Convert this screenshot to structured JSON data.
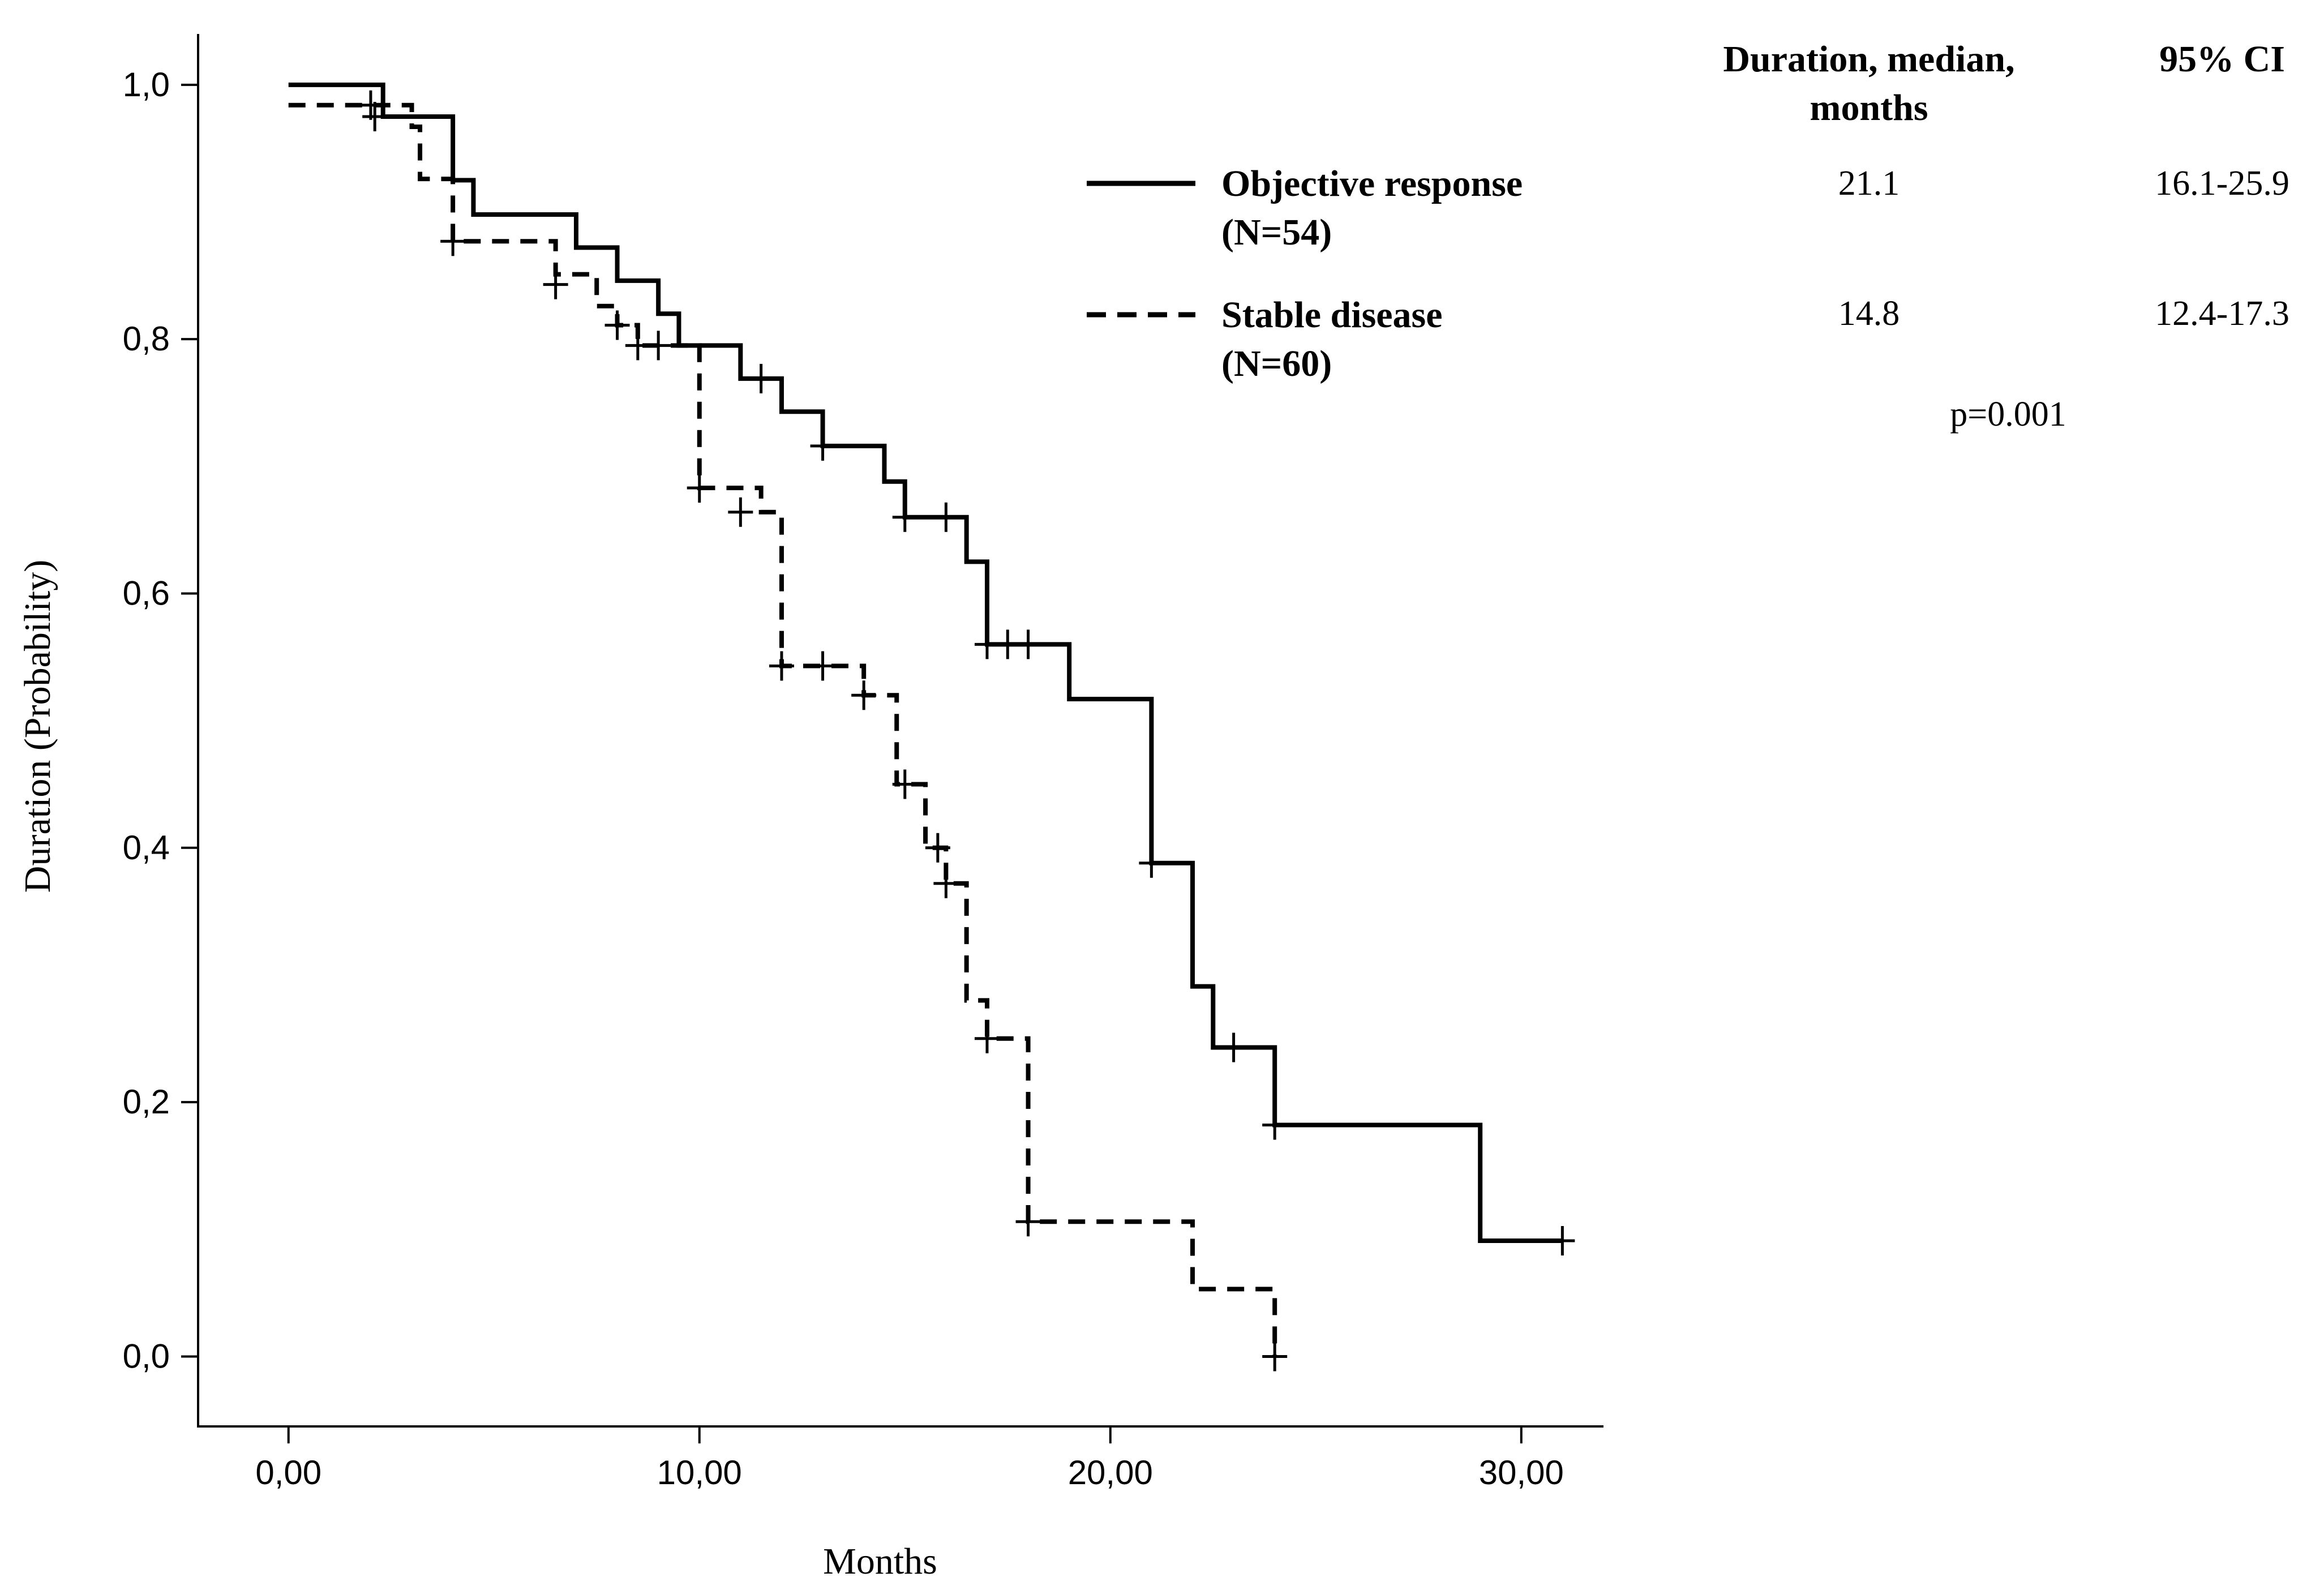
{
  "chart_data": {
    "type": "line",
    "subtype": "kaplan-meier",
    "xlabel": "Months",
    "ylabel": "Duration (Probability)",
    "xlim": [
      -2.2,
      32.0
    ],
    "ylim": [
      -0.055,
      1.04
    ],
    "xticks": [
      0,
      10,
      20,
      30
    ],
    "xtick_labels": [
      "0,00",
      "10,00",
      "20,00",
      "30,00"
    ],
    "yticks": [
      0,
      0.2,
      0.4,
      0.6,
      0.8,
      1.0
    ],
    "ytick_labels": [
      "0,0",
      "0,2",
      "0,4",
      "0,6",
      "0,8",
      "1,0"
    ],
    "series": [
      {
        "name": "Objective response",
        "n_label": "(N=54)",
        "style": "solid",
        "steps": [
          [
            0,
            1.0
          ],
          [
            2.3,
            0.975
          ],
          [
            4.0,
            0.925
          ],
          [
            4.5,
            0.898
          ],
          [
            7.0,
            0.872
          ],
          [
            8.0,
            0.846
          ],
          [
            9.0,
            0.82
          ],
          [
            9.5,
            0.795
          ],
          [
            11.0,
            0.769
          ],
          [
            12.0,
            0.743
          ],
          [
            13.0,
            0.716
          ],
          [
            14.5,
            0.688
          ],
          [
            15.0,
            0.66
          ],
          [
            16.5,
            0.625
          ],
          [
            17.0,
            0.56
          ],
          [
            19.0,
            0.517
          ],
          [
            21.0,
            0.388
          ],
          [
            22.0,
            0.291
          ],
          [
            22.5,
            0.243
          ],
          [
            24.0,
            0.182
          ],
          [
            29.0,
            0.091
          ]
        ],
        "end": 31.0,
        "censored": [
          [
            2.1,
            0.975
          ],
          [
            11.5,
            0.769
          ],
          [
            13.0,
            0.716
          ],
          [
            15.0,
            0.66
          ],
          [
            16.0,
            0.66
          ],
          [
            17.0,
            0.56
          ],
          [
            17.5,
            0.56
          ],
          [
            18.0,
            0.56
          ],
          [
            21.0,
            0.388
          ],
          [
            23.0,
            0.243
          ],
          [
            24.0,
            0.182
          ],
          [
            31.0,
            0.091
          ]
        ]
      },
      {
        "name": "Stable disease",
        "n_label": "(N=60)",
        "style": "dashed",
        "steps": [
          [
            0,
            0.984
          ],
          [
            3.0,
            0.967
          ],
          [
            3.2,
            0.926
          ],
          [
            4.0,
            0.877
          ],
          [
            6.5,
            0.851
          ],
          [
            7.5,
            0.826
          ],
          [
            8.0,
            0.811
          ],
          [
            8.5,
            0.795
          ],
          [
            10.0,
            0.683
          ],
          [
            11.5,
            0.664
          ],
          [
            12.0,
            0.643
          ],
          [
            12.0,
            0.543
          ],
          [
            14.0,
            0.52
          ],
          [
            14.8,
            0.45
          ],
          [
            15.5,
            0.4
          ],
          [
            16.0,
            0.372
          ],
          [
            16.5,
            0.28
          ],
          [
            17.0,
            0.25
          ],
          [
            18.0,
            0.106
          ],
          [
            22.0,
            0.053
          ],
          [
            24.0,
            0.0
          ]
        ],
        "end": 24.0,
        "censored": [
          [
            2.0,
            0.984
          ],
          [
            4.0,
            0.877
          ],
          [
            6.5,
            0.843
          ],
          [
            8.0,
            0.811
          ],
          [
            8.5,
            0.795
          ],
          [
            9.0,
            0.795
          ],
          [
            10.0,
            0.683
          ],
          [
            11.0,
            0.664
          ],
          [
            12.0,
            0.543
          ],
          [
            13.0,
            0.543
          ],
          [
            14.0,
            0.52
          ],
          [
            15.0,
            0.45
          ],
          [
            15.8,
            0.4
          ],
          [
            16.0,
            0.372
          ],
          [
            17.0,
            0.25
          ],
          [
            18.0,
            0.106
          ],
          [
            24.0,
            0.0
          ]
        ]
      }
    ],
    "table": {
      "header_duration": "Duration, median,",
      "header_duration_2": "months",
      "header_ci": "95% CI",
      "rows": [
        {
          "duration": "21.1",
          "ci": "16.1-25.9"
        },
        {
          "duration": "14.8",
          "ci": "12.4-17.3"
        }
      ],
      "p_value": "p=0.001"
    }
  }
}
